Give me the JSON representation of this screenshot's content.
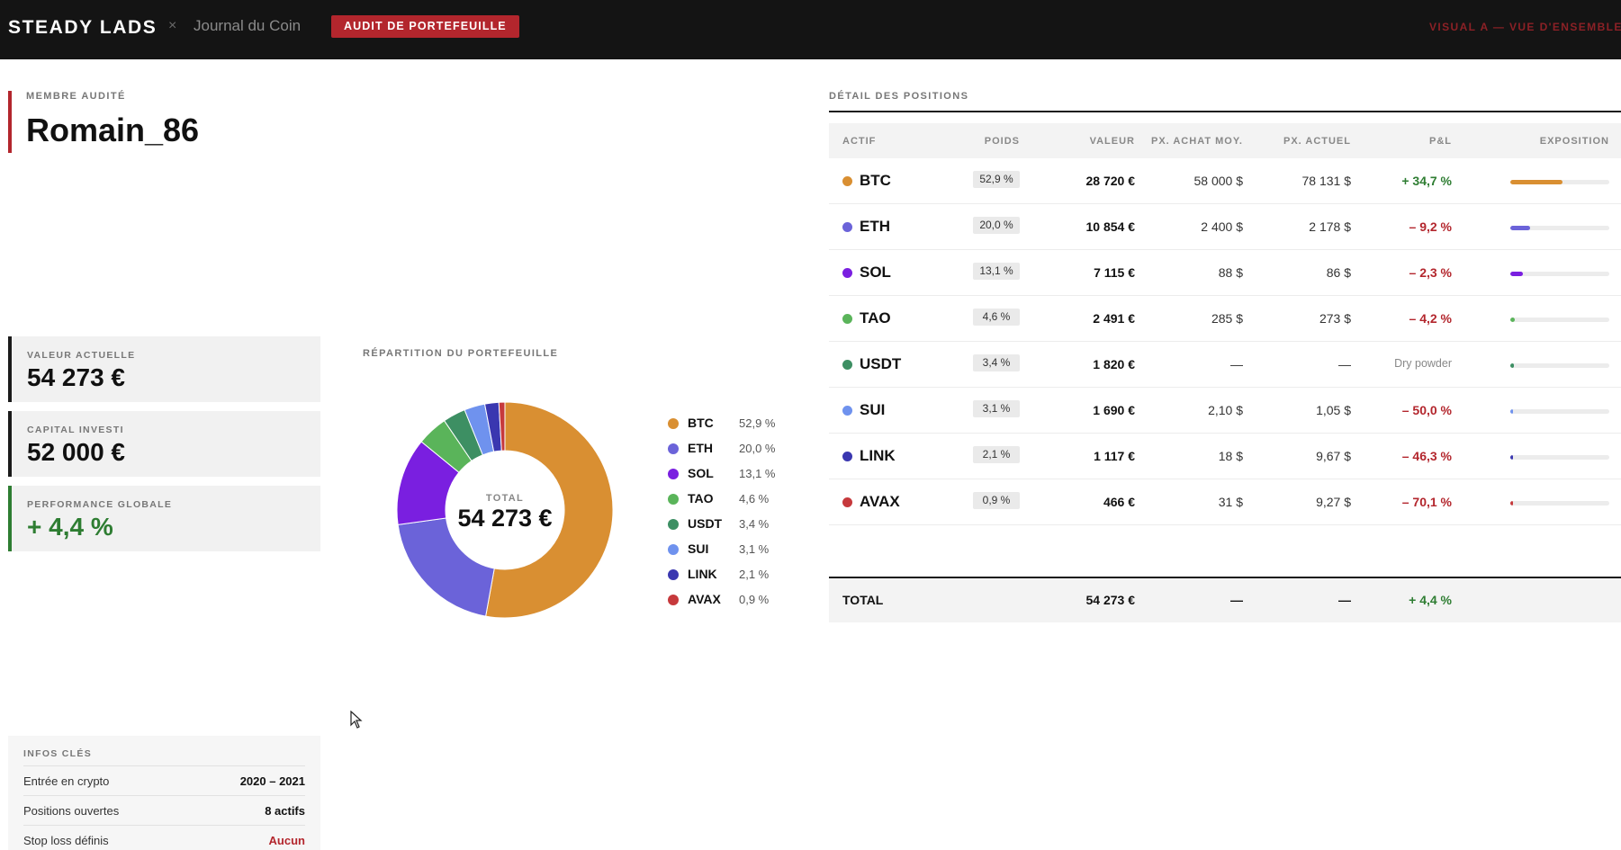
{
  "topbar": {
    "brand": "STEADY LADS",
    "separator": "×",
    "journal": "Journal du Coin",
    "badge": "AUDIT DE PORTEFEUILLE",
    "visual_tag": "VISUAL A — VUE D'ENSEMBLE"
  },
  "member": {
    "label": "MEMBRE AUDITÉ",
    "name": "Romain_86"
  },
  "kpis": {
    "current_value": {
      "label": "VALEUR ACTUELLE",
      "value": "54 273 €"
    },
    "invested": {
      "label": "CAPITAL INVESTI",
      "value": "52 000 €"
    },
    "performance": {
      "label": "PERFORMANCE GLOBALE",
      "value": "+ 4,4 %"
    }
  },
  "infos": {
    "label": "INFOS CLÉS",
    "rows": [
      {
        "key": "Entrée en crypto",
        "value": "2020 – 2021"
      },
      {
        "key": "Positions ouvertes",
        "value": "8 actifs"
      },
      {
        "key": "Stop loss définis",
        "value": "Aucun"
      }
    ]
  },
  "allocation": {
    "label": "RÉPARTITION DU PORTEFEUILLE",
    "center_label": "TOTAL",
    "center_value": "54 273 €"
  },
  "chart_data": {
    "type": "pie",
    "categories": [
      "BTC",
      "ETH",
      "SOL",
      "TAO",
      "USDT",
      "SUI",
      "LINK",
      "AVAX"
    ],
    "values": [
      52.9,
      20.0,
      13.1,
      4.6,
      3.4,
      3.1,
      2.1,
      0.9
    ],
    "labels": [
      "52,9 %",
      "20,0 %",
      "13,1 %",
      "4,6 %",
      "3,4 %",
      "3,1 %",
      "2,1 %",
      "0,9 %"
    ],
    "colors": [
      "#d98f32",
      "#6b63d9",
      "#7a1fe0",
      "#5ab45a",
      "#3d8f63",
      "#6f92ee",
      "#3a37b0",
      "#c6393c"
    ],
    "legend_position": "right",
    "center_label": "TOTAL",
    "center_value": "54 273 €"
  },
  "positions": {
    "label": "DÉTAIL DES POSITIONS",
    "headers": [
      "ACTIF",
      "POIDS",
      "VALEUR",
      "PX. ACHAT MOY.",
      "PX. ACTUEL",
      "P&L",
      "EXPOSITION"
    ],
    "rows": [
      {
        "asset": "BTC",
        "color": "#d98f32",
        "weight": "52,9 %",
        "value": "28 720 €",
        "buy": "58 000 $",
        "current": "78 131 $",
        "pnl": "+ 34,7 %",
        "pnl_kind": "pos",
        "exposure": 52.9
      },
      {
        "asset": "ETH",
        "color": "#6b63d9",
        "weight": "20,0 %",
        "value": "10 854 €",
        "buy": "2 400 $",
        "current": "2 178 $",
        "pnl": "– 9,2 %",
        "pnl_kind": "neg",
        "exposure": 20.0
      },
      {
        "asset": "SOL",
        "color": "#7a1fe0",
        "weight": "13,1 %",
        "value": "7 115 €",
        "buy": "88 $",
        "current": "86 $",
        "pnl": "– 2,3 %",
        "pnl_kind": "neg",
        "exposure": 13.1
      },
      {
        "asset": "TAO",
        "color": "#5ab45a",
        "weight": "4,6 %",
        "value": "2 491 €",
        "buy": "285 $",
        "current": "273 $",
        "pnl": "– 4,2 %",
        "pnl_kind": "neg",
        "exposure": 4.6
      },
      {
        "asset": "USDT",
        "color": "#3d8f63",
        "weight": "3,4 %",
        "value": "1 820 €",
        "buy": "—",
        "current": "—",
        "pnl": "Dry powder",
        "pnl_kind": "note",
        "exposure": 3.4
      },
      {
        "asset": "SUI",
        "color": "#6f92ee",
        "weight": "3,1 %",
        "value": "1 690 €",
        "buy": "2,10 $",
        "current": "1,05 $",
        "pnl": "– 50,0 %",
        "pnl_kind": "neg",
        "exposure": 3.1
      },
      {
        "asset": "LINK",
        "color": "#3a37b0",
        "weight": "2,1 %",
        "value": "1 117 €",
        "buy": "18 $",
        "current": "9,67 $",
        "pnl": "– 46,3 %",
        "pnl_kind": "neg",
        "exposure": 2.1
      },
      {
        "asset": "AVAX",
        "color": "#c6393c",
        "weight": "0,9 %",
        "value": "466 €",
        "buy": "31 $",
        "current": "9,27 $",
        "pnl": "– 70,1 %",
        "pnl_kind": "neg",
        "exposure": 0.9
      }
    ],
    "total": {
      "label": "TOTAL",
      "value": "54 273 €",
      "buy": "—",
      "current": "—",
      "pnl": "+ 4,4 %"
    }
  }
}
